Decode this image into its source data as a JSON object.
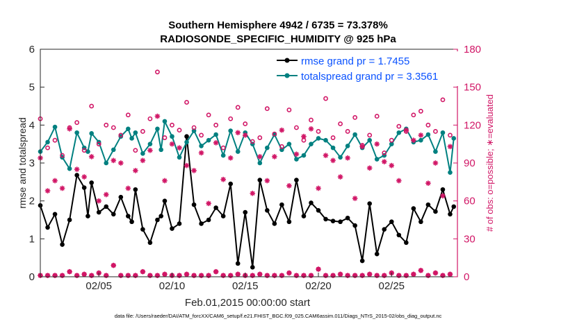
{
  "chart_data": {
    "type": "line",
    "title": "Southern Hemisphere 4942 / 6735 = 73.378%",
    "subtitle": "RADIOSONDE_SPECIFIC_HUMIDITY @ 925 hPa",
    "xlabel": "Feb.01,2015 00:00:00 start",
    "ylabel": "rmse and totalspread",
    "ylabel_right": "# of obs: o=possible; ∗=evaluated",
    "footnote": "data file: /Users/raeder/DAI/ATM_forcXX/CAM6_setup/f.e21.FHIST_BGC.f09_025.CAM6assim.011/Diags_NTrS_2015-02/obs_diag_output.nc",
    "xlim": [
      1,
      29.5
    ],
    "ylim": [
      0,
      6
    ],
    "ylim_right": [
      0,
      180
    ],
    "xticks": [
      5,
      10,
      15,
      20,
      25
    ],
    "xtick_labels": [
      "02/05",
      "02/10",
      "02/15",
      "02/20",
      "02/25"
    ],
    "yticks": [
      0,
      1,
      2,
      3,
      4,
      5,
      6
    ],
    "ytick_labels": [
      "0",
      "1",
      "2",
      "3",
      "4",
      "5",
      "6"
    ],
    "yticks_right": [
      0,
      30,
      60,
      90,
      120,
      150,
      180
    ],
    "ytick_labels_right": [
      "0",
      "30",
      "60",
      "90",
      "120",
      "150",
      "180"
    ],
    "colors": {
      "rmse": "#000000",
      "spread": "#008080",
      "obs": "#d11666",
      "legend_text": "#0a52ff"
    },
    "legend": [
      {
        "name": "rmse grand pr = 1.7455",
        "series": "rmse"
      },
      {
        "name": "totalspread grand pr = 3.3561",
        "series": "totalspread"
      }
    ],
    "series": [
      {
        "name": "rmse",
        "x": [
          1.0,
          1.5,
          2.0,
          2.5,
          3.0,
          3.5,
          4.0,
          4.25,
          4.5,
          5.0,
          5.5,
          6.0,
          6.5,
          7.0,
          7.25,
          7.5,
          8.0,
          8.5,
          9.0,
          9.25,
          9.5,
          10.0,
          10.5,
          11.0,
          11.5,
          12.0,
          12.5,
          13.0,
          13.5,
          14.0,
          14.5,
          15.0,
          15.5,
          16.0,
          16.5,
          17.0,
          17.5,
          18.0,
          18.5,
          19.0,
          19.5,
          20.0,
          20.5,
          21.0,
          21.5,
          22.0,
          22.5,
          23.0,
          23.5,
          24.0,
          24.5,
          25.0,
          25.5,
          26.0,
          26.5,
          27.0,
          27.5,
          28.0,
          28.5,
          29.0,
          29.25
        ],
        "values": [
          1.88,
          1.3,
          1.65,
          0.85,
          1.5,
          2.68,
          2.35,
          1.6,
          2.48,
          1.7,
          1.85,
          1.65,
          2.1,
          1.6,
          1.45,
          2.3,
          1.25,
          0.9,
          1.5,
          1.6,
          2.0,
          1.27,
          1.4,
          3.7,
          1.9,
          1.4,
          1.5,
          1.82,
          1.6,
          2.45,
          0.35,
          1.7,
          0.25,
          2.55,
          1.75,
          1.4,
          1.9,
          1.45,
          2.55,
          1.6,
          1.95,
          1.75,
          1.52,
          1.47,
          1.45,
          1.55,
          1.35,
          0.42,
          1.93,
          0.6,
          1.25,
          1.45,
          1.1,
          0.9,
          1.8,
          1.45,
          1.9,
          1.72,
          2.3,
          1.65,
          1.85
        ]
      },
      {
        "name": "totalspread",
        "x": [
          1.0,
          1.5,
          2.0,
          2.5,
          3.0,
          3.5,
          4.0,
          4.25,
          4.5,
          5.0,
          5.5,
          6.0,
          6.5,
          7.0,
          7.25,
          7.5,
          8.0,
          8.5,
          9.0,
          9.25,
          9.5,
          10.0,
          10.5,
          11.0,
          11.5,
          12.0,
          12.5,
          13.0,
          13.5,
          14.0,
          14.5,
          15.0,
          15.5,
          16.0,
          16.5,
          17.0,
          17.5,
          18.0,
          18.5,
          19.0,
          19.5,
          20.0,
          20.5,
          21.0,
          21.5,
          22.0,
          22.5,
          23.0,
          23.5,
          24.0,
          24.5,
          25.0,
          25.5,
          26.0,
          26.5,
          27.0,
          27.5,
          28.0,
          28.5,
          29.0,
          29.25
        ],
        "values": [
          3.3,
          3.55,
          3.95,
          3.15,
          2.85,
          3.8,
          3.4,
          3.3,
          3.78,
          3.55,
          3.0,
          3.35,
          3.7,
          3.9,
          3.65,
          3.8,
          3.25,
          3.5,
          3.9,
          3.35,
          4.1,
          3.7,
          3.15,
          3.55,
          3.85,
          3.45,
          3.6,
          3.75,
          3.2,
          3.85,
          3.3,
          3.8,
          3.5,
          3.0,
          3.4,
          3.75,
          3.35,
          3.5,
          3.1,
          3.2,
          3.5,
          3.65,
          3.6,
          3.4,
          3.15,
          3.45,
          3.75,
          3.4,
          3.6,
          3.1,
          3.2,
          3.5,
          3.8,
          3.9,
          3.55,
          3.6,
          3.75,
          3.3,
          3.8,
          2.75,
          3.65
        ]
      },
      {
        "name": "obs possible",
        "axis": "right",
        "x": [
          1.0,
          1.5,
          2.0,
          2.5,
          3.0,
          3.5,
          4.0,
          4.5,
          5.0,
          5.5,
          6.0,
          6.5,
          7.0,
          7.5,
          8.0,
          8.5,
          9.0,
          9.5,
          10.0,
          10.5,
          11.0,
          11.5,
          12.0,
          12.5,
          13.0,
          13.5,
          14.0,
          14.5,
          15.0,
          15.5,
          16.0,
          16.5,
          17.0,
          17.5,
          18.0,
          18.5,
          19.0,
          19.5,
          20.0,
          20.5,
          21.0,
          21.5,
          22.0,
          22.5,
          23.0,
          23.5,
          24.0,
          24.5,
          25.0,
          25.5,
          26.0,
          26.5,
          27.0,
          27.5,
          28.0,
          28.5,
          29.0
        ],
        "values": [
          125,
          102,
          108,
          96,
          118,
          122,
          100,
          135,
          105,
          120,
          118,
          112,
          128,
          100,
          115,
          125,
          162,
          110,
          120,
          116,
          138,
          118,
          112,
          128,
          120,
          102,
          125,
          134,
          121,
          107,
          110,
          133,
          113,
          103,
          132,
          118,
          108,
          124,
          115,
          141,
          110,
          121,
          115,
          126,
          104,
          112,
          127,
          98,
          108,
          119,
          115,
          128,
          131,
          120,
          115,
          140,
          112
        ]
      },
      {
        "name": "obs evaluated",
        "axis": "right",
        "x": [
          1.0,
          1.5,
          2.0,
          2.5,
          3.0,
          3.5,
          4.0,
          4.5,
          5.0,
          5.5,
          6.0,
          6.5,
          7.0,
          7.5,
          8.0,
          8.5,
          9.0,
          9.5,
          10.0,
          10.5,
          11.0,
          11.5,
          12.0,
          12.5,
          13.0,
          13.5,
          14.0,
          14.5,
          15.0,
          15.5,
          16.0,
          16.5,
          17.0,
          17.5,
          18.0,
          18.5,
          19.0,
          19.5,
          20.0,
          20.5,
          21.0,
          21.5,
          22.0,
          22.5,
          23.0,
          23.5,
          24.0,
          24.5,
          25.0,
          25.5,
          26.0,
          26.5,
          27.0,
          27.5,
          28.0,
          28.5,
          29.0
        ],
        "values": [
          94,
          68,
          76,
          70,
          117,
          85,
          79,
          95,
          60,
          65,
          92,
          90,
          70,
          84,
          92,
          100,
          127,
          76,
          105,
          102,
          88,
          84,
          98,
          58,
          106,
          77,
          94,
          114,
          112,
          66,
          95,
          76,
          95,
          116,
          72,
          97,
          111,
          117,
          70,
          96,
          92,
          79,
          94,
          62,
          103,
          86,
          105,
          91,
          88,
          76,
          116,
          108,
          112,
          74,
          90,
          64,
          103
        ]
      },
      {
        "name": "obs bottom markers",
        "axis": "right",
        "x": [
          1.0,
          1.5,
          2.0,
          2.5,
          3.0,
          3.5,
          4.0,
          4.5,
          5.0,
          5.5,
          6.0,
          6.5,
          7.0,
          7.5,
          8.0,
          8.5,
          9.0,
          9.5,
          10.0,
          10.5,
          11.0,
          11.5,
          12.0,
          12.5,
          13.0,
          13.5,
          14.0,
          14.5,
          15.0,
          15.5,
          16.0,
          16.5,
          17.0,
          17.5,
          18.0,
          18.5,
          19.0,
          19.5,
          20.0,
          20.5,
          21.0,
          21.5,
          22.0,
          22.5,
          23.0,
          23.5,
          24.0,
          24.5,
          25.0,
          25.5,
          26.0,
          26.5,
          27.0,
          27.5,
          28.0,
          28.5,
          29.0
        ],
        "values": [
          1,
          1,
          1,
          1,
          4,
          1,
          2,
          1,
          3,
          1,
          9,
          1,
          1,
          1,
          4,
          1,
          1,
          2,
          1,
          1,
          2,
          1,
          1,
          1,
          4,
          1,
          1,
          2,
          1,
          1,
          2,
          1,
          1,
          1,
          3,
          1,
          1,
          1,
          6,
          1,
          1,
          2,
          1,
          1,
          1,
          2,
          1,
          1,
          3,
          1,
          1,
          2,
          5,
          1,
          3,
          1,
          2
        ]
      }
    ]
  }
}
